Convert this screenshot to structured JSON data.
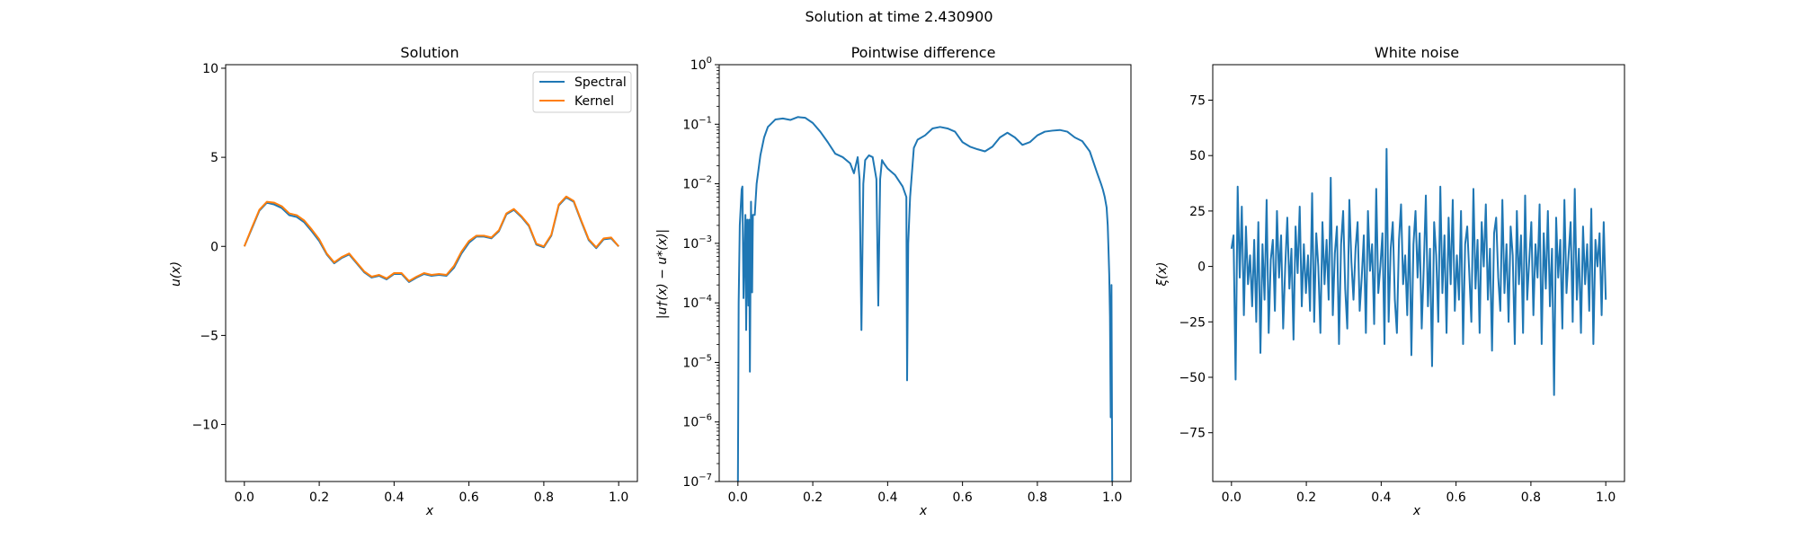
{
  "figure": {
    "suptitle": "Solution at time 2.430900"
  },
  "chart_data": [
    {
      "type": "line",
      "title": "Solution",
      "xlabel": "x",
      "ylabel": "u(x)",
      "xlim": [
        -0.05,
        1.05
      ],
      "ylim": [
        -13.2,
        10.2
      ],
      "xticks": [
        0.0,
        0.2,
        0.4,
        0.6,
        0.8,
        1.0
      ],
      "xtick_labels": [
        "0.0",
        "0.2",
        "0.4",
        "0.6",
        "0.8",
        "1.0"
      ],
      "yticks": [
        -10,
        -5,
        0,
        5,
        10
      ],
      "ytick_labels": [
        "−10",
        "−5",
        "0",
        "5",
        "10"
      ],
      "legend": {
        "placement": "top-right"
      },
      "series": [
        {
          "name": "Spectral",
          "color": "#1f77b4",
          "x": [
            0.0,
            0.02,
            0.04,
            0.06,
            0.08,
            0.1,
            0.12,
            0.14,
            0.16,
            0.18,
            0.2,
            0.22,
            0.24,
            0.26,
            0.28,
            0.3,
            0.32,
            0.34,
            0.36,
            0.38,
            0.4,
            0.42,
            0.44,
            0.46,
            0.48,
            0.5,
            0.52,
            0.54,
            0.56,
            0.58,
            0.6,
            0.62,
            0.64,
            0.66,
            0.68,
            0.7,
            0.72,
            0.74,
            0.76,
            0.78,
            0.8,
            0.82,
            0.84,
            0.86,
            0.88,
            0.9,
            0.92,
            0.94,
            0.96,
            0.98,
            1.0
          ],
          "y": [
            0.0,
            1.0,
            2.0,
            2.45,
            2.35,
            2.15,
            1.75,
            1.65,
            1.35,
            0.85,
            0.3,
            -0.45,
            -0.95,
            -0.65,
            -0.45,
            -0.95,
            -1.45,
            -1.75,
            -1.65,
            -1.85,
            -1.55,
            -1.55,
            -2.0,
            -1.75,
            -1.55,
            -1.65,
            -1.6,
            -1.65,
            -1.2,
            -0.4,
            0.2,
            0.55,
            0.55,
            0.45,
            0.85,
            1.8,
            2.05,
            1.65,
            1.15,
            0.1,
            -0.05,
            0.6,
            2.3,
            2.75,
            2.5,
            1.4,
            0.35,
            -0.1,
            0.4,
            0.45,
            0.0
          ]
        },
        {
          "name": "Kernel",
          "color": "#ff7f0e",
          "x": [
            0.0,
            0.02,
            0.04,
            0.06,
            0.08,
            0.1,
            0.12,
            0.14,
            0.16,
            0.18,
            0.2,
            0.22,
            0.24,
            0.26,
            0.28,
            0.3,
            0.32,
            0.34,
            0.36,
            0.38,
            0.4,
            0.42,
            0.44,
            0.46,
            0.48,
            0.5,
            0.52,
            0.54,
            0.56,
            0.58,
            0.6,
            0.62,
            0.64,
            0.66,
            0.68,
            0.7,
            0.72,
            0.74,
            0.76,
            0.78,
            0.8,
            0.82,
            0.84,
            0.86,
            0.88,
            0.9,
            0.92,
            0.94,
            0.96,
            0.98,
            1.0
          ],
          "y": [
            0.0,
            1.05,
            2.05,
            2.5,
            2.45,
            2.25,
            1.85,
            1.75,
            1.45,
            0.95,
            0.4,
            -0.4,
            -0.9,
            -0.6,
            -0.4,
            -0.9,
            -1.4,
            -1.7,
            -1.6,
            -1.8,
            -1.5,
            -1.5,
            -1.95,
            -1.7,
            -1.5,
            -1.6,
            -1.55,
            -1.6,
            -1.1,
            -0.3,
            0.3,
            0.6,
            0.6,
            0.5,
            0.9,
            1.85,
            2.1,
            1.7,
            1.2,
            0.15,
            0.0,
            0.65,
            2.35,
            2.8,
            2.55,
            1.45,
            0.4,
            -0.05,
            0.45,
            0.5,
            0.0
          ]
        }
      ]
    },
    {
      "type": "line",
      "title": "Pointwise difference",
      "xlabel": "x",
      "ylabel": "|u†(x) − u*(x)|",
      "yscale": "log",
      "xlim": [
        -0.05,
        1.05
      ],
      "ylim": [
        1e-07,
        1
      ],
      "xticks": [
        0.0,
        0.2,
        0.4,
        0.6,
        0.8,
        1.0
      ],
      "xtick_labels": [
        "0.0",
        "0.2",
        "0.4",
        "0.6",
        "0.8",
        "1.0"
      ],
      "ytick_exponents": [
        -7,
        -6,
        -5,
        -4,
        -3,
        -2,
        -1,
        0
      ],
      "ytick_base": "10",
      "series": [
        {
          "color": "#1f77b4",
          "x": [
            0.0,
            0.002,
            0.005,
            0.01,
            0.012,
            0.015,
            0.02,
            0.022,
            0.025,
            0.028,
            0.03,
            0.032,
            0.035,
            0.038,
            0.04,
            0.045,
            0.05,
            0.06,
            0.07,
            0.08,
            0.1,
            0.12,
            0.14,
            0.16,
            0.18,
            0.2,
            0.22,
            0.24,
            0.26,
            0.28,
            0.3,
            0.31,
            0.32,
            0.325,
            0.33,
            0.335,
            0.34,
            0.35,
            0.36,
            0.37,
            0.375,
            0.38,
            0.385,
            0.39,
            0.4,
            0.42,
            0.44,
            0.45,
            0.452,
            0.455,
            0.46,
            0.47,
            0.48,
            0.5,
            0.52,
            0.54,
            0.56,
            0.58,
            0.6,
            0.62,
            0.64,
            0.66,
            0.68,
            0.7,
            0.72,
            0.74,
            0.76,
            0.78,
            0.8,
            0.82,
            0.84,
            0.86,
            0.88,
            0.9,
            0.92,
            0.94,
            0.96,
            0.97,
            0.975,
            0.98,
            0.985,
            0.988,
            0.99,
            0.992,
            0.994,
            0.996,
            0.998,
            1.0
          ],
          "y": [
            1e-07,
            0.0001,
            0.002,
            0.008,
            0.009,
            0.00012,
            0.003,
            3.5e-05,
            0.0025,
            9e-05,
            0.0025,
            7e-06,
            0.005,
            0.00015,
            0.003,
            0.003,
            0.01,
            0.03,
            0.06,
            0.09,
            0.12,
            0.125,
            0.118,
            0.132,
            0.128,
            0.105,
            0.075,
            0.05,
            0.032,
            0.028,
            0.022,
            0.015,
            0.028,
            0.012,
            3.5e-05,
            0.01,
            0.025,
            0.03,
            0.028,
            0.012,
            9e-05,
            0.012,
            0.025,
            0.022,
            0.018,
            0.014,
            0.009,
            0.006,
            5e-06,
            0.001,
            0.006,
            0.04,
            0.055,
            0.065,
            0.085,
            0.09,
            0.085,
            0.075,
            0.05,
            0.042,
            0.038,
            0.035,
            0.042,
            0.06,
            0.072,
            0.06,
            0.045,
            0.05,
            0.065,
            0.075,
            0.078,
            0.08,
            0.075,
            0.06,
            0.052,
            0.035,
            0.015,
            0.01,
            0.008,
            0.006,
            0.004,
            0.002,
            0.0008,
            0.0003,
            6e-05,
            1.2e-06,
            0.0002,
            1e-07
          ]
        }
      ]
    },
    {
      "type": "line",
      "title": "White noise",
      "xlabel": "x",
      "ylabel": "ξ(x)",
      "xlim": [
        -0.05,
        1.05
      ],
      "ylim": [
        -97,
        91
      ],
      "xticks": [
        0.0,
        0.2,
        0.4,
        0.6,
        0.8,
        1.0
      ],
      "xtick_labels": [
        "0.0",
        "0.2",
        "0.4",
        "0.6",
        "0.8",
        "1.0"
      ],
      "yticks": [
        -75,
        -50,
        -25,
        0,
        25,
        50,
        75
      ],
      "ytick_labels": [
        "−75",
        "−50",
        "−25",
        "0",
        "25",
        "50",
        "75"
      ],
      "series": [
        {
          "color": "#1f77b4",
          "x_range": [
            0.0,
            1.0
          ],
          "y": [
            8,
            14,
            -51,
            36,
            -5,
            27,
            -22,
            18,
            -8,
            5,
            -18,
            12,
            -25,
            20,
            -39,
            10,
            -15,
            30,
            -30,
            3,
            12,
            -20,
            25,
            -5,
            14,
            -28,
            0,
            22,
            -10,
            8,
            -33,
            18,
            -3,
            27,
            -18,
            10,
            -12,
            5,
            -20,
            33,
            -25,
            15,
            0,
            -30,
            20,
            -8,
            12,
            -15,
            40,
            -22,
            6,
            18,
            -35,
            10,
            25,
            -10,
            -28,
            30,
            2,
            -15,
            8,
            20,
            -20,
            -5,
            14,
            -30,
            25,
            -2,
            10,
            -26,
            35,
            -12,
            0,
            15,
            -35,
            53,
            -25,
            8,
            20,
            -15,
            -30,
            12,
            28,
            -8,
            5,
            -22,
            18,
            -40,
            10,
            25,
            -5,
            15,
            -28,
            0,
            32,
            -18,
            8,
            -45,
            20,
            5,
            -25,
            36,
            -12,
            14,
            -30,
            22,
            -8,
            30,
            -20,
            5,
            -15,
            25,
            -35,
            10,
            18,
            -3,
            -25,
            35,
            -10,
            12,
            -30,
            20,
            0,
            28,
            -15,
            8,
            -38,
            15,
            22,
            -5,
            -20,
            30,
            -12,
            10,
            -25,
            18,
            5,
            -35,
            25,
            -8,
            14,
            -30,
            32,
            -15,
            3,
            20,
            -22,
            10,
            -5,
            28,
            -35,
            15,
            -10,
            25,
            -18,
            8,
            -58,
            22,
            -5,
            12,
            -28,
            30,
            -12,
            5,
            20,
            -25,
            35,
            -15,
            8,
            -30,
            18,
            -8,
            10,
            -20,
            26,
            -35,
            12,
            0,
            15,
            -22,
            20,
            -15
          ]
        }
      ]
    }
  ]
}
